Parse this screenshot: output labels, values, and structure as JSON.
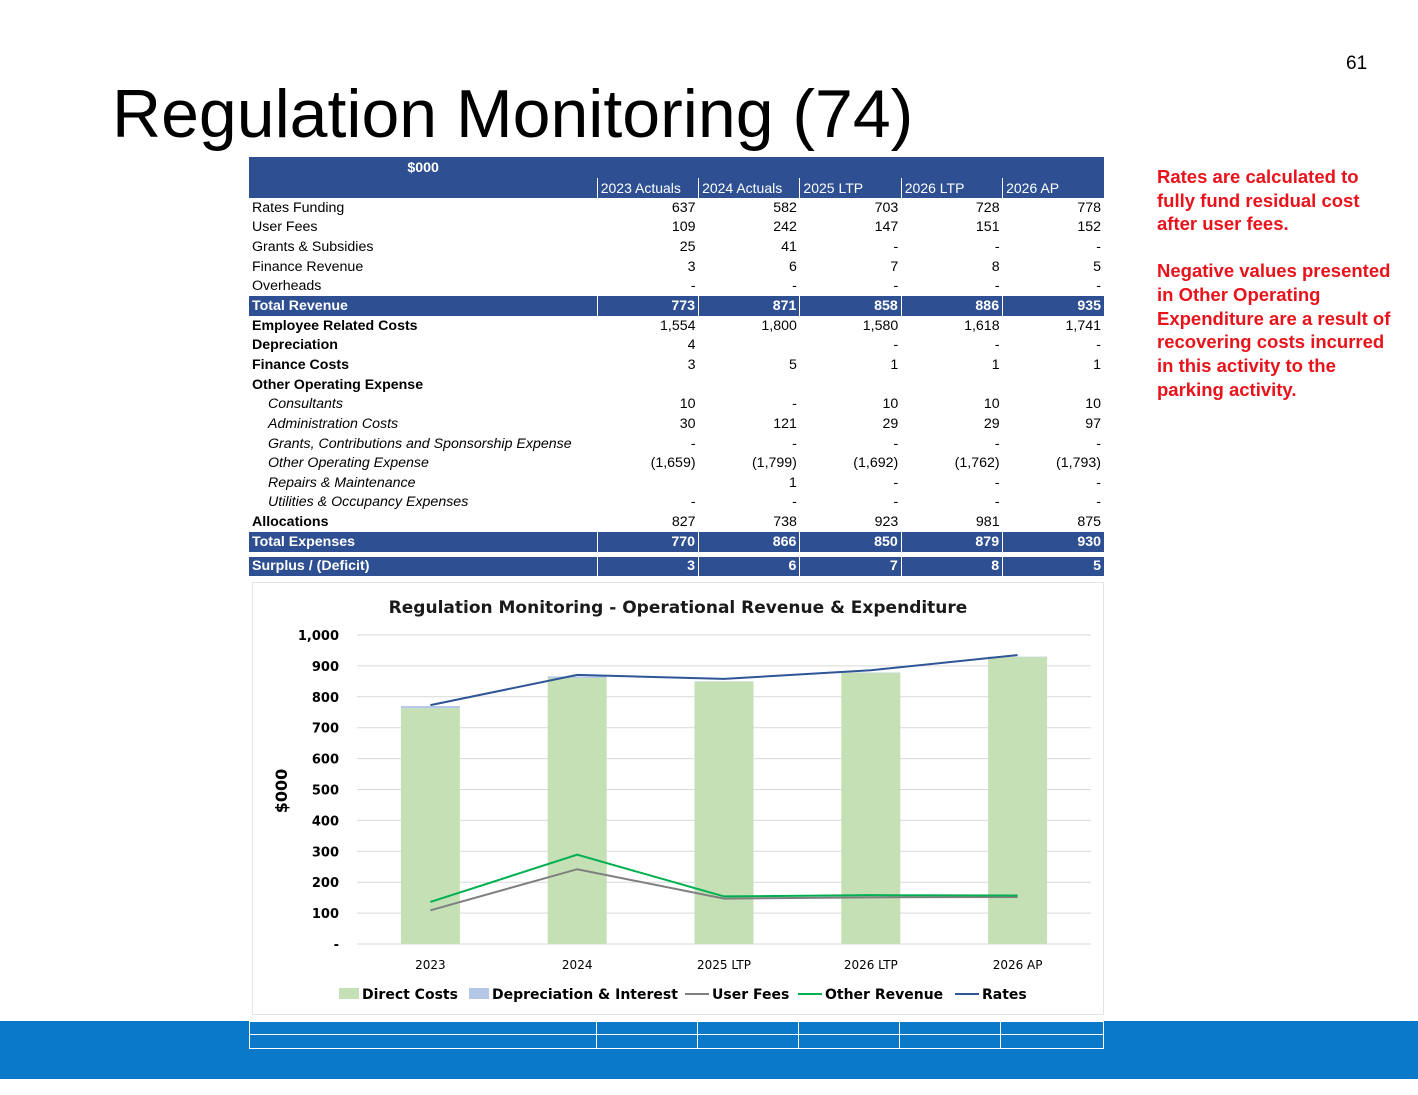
{
  "page_number": "61",
  "title": "Regulation Monitoring (74)",
  "notes": [
    "Rates are calculated to fully fund residual cost after user fees.",
    "Negative values presented in Other Operating Expenditure are a result of recovering costs incurred in this activity to the parking activity."
  ],
  "table": {
    "unit_label": "$000",
    "columns": [
      "2023 Actuals",
      "2024 Actuals",
      "2025 LTP",
      "2026 LTP",
      "2026 AP"
    ],
    "rows": [
      {
        "label": "Rates Funding",
        "values": [
          "637",
          "582",
          "703",
          "728",
          "778"
        ],
        "style": "normal"
      },
      {
        "label": "User Fees",
        "values": [
          "109",
          "242",
          "147",
          "151",
          "152"
        ],
        "style": "normal"
      },
      {
        "label": "Grants & Subsidies",
        "values": [
          "25",
          "41",
          "-",
          "-",
          "-"
        ],
        "style": "normal"
      },
      {
        "label": "Finance Revenue",
        "values": [
          "3",
          "6",
          "7",
          "8",
          "5"
        ],
        "style": "normal"
      },
      {
        "label": "Overheads",
        "values": [
          "-",
          "-",
          "-",
          "-",
          "-"
        ],
        "style": "normal"
      },
      {
        "label": "Total Revenue",
        "values": [
          "773",
          "871",
          "858",
          "886",
          "935"
        ],
        "style": "total"
      },
      {
        "label": "Employee Related Costs",
        "values": [
          "1,554",
          "1,800",
          "1,580",
          "1,618",
          "1,741"
        ],
        "style": "bold"
      },
      {
        "label": "Depreciation",
        "values": [
          "4",
          "",
          "-",
          "-",
          "-"
        ],
        "style": "bold"
      },
      {
        "label": "Finance Costs",
        "values": [
          "3",
          "5",
          "1",
          "1",
          "1"
        ],
        "style": "bold"
      },
      {
        "label": "Other Operating  Expense",
        "values": [
          "",
          "",
          "",
          "",
          ""
        ],
        "style": "bold"
      },
      {
        "label": "Consultants",
        "values": [
          "10",
          "-",
          "10",
          "10",
          "10"
        ],
        "style": "sub"
      },
      {
        "label": "Administration Costs",
        "values": [
          "30",
          "121",
          "29",
          "29",
          "97"
        ],
        "style": "sub"
      },
      {
        "label": "Grants, Contributions and Sponsorship Expense",
        "values": [
          "-",
          "-",
          "-",
          "-",
          "-"
        ],
        "style": "sub"
      },
      {
        "label": "Other Operating Expense",
        "values": [
          "(1,659)",
          "(1,799)",
          "(1,692)",
          "(1,762)",
          "(1,793)"
        ],
        "style": "sub"
      },
      {
        "label": "Repairs & Maintenance",
        "values": [
          "",
          "1",
          "-",
          "-",
          "-"
        ],
        "style": "sub"
      },
      {
        "label": "Utilities & Occupancy Expenses",
        "values": [
          "-",
          "-",
          "-",
          "-",
          "-"
        ],
        "style": "sub"
      },
      {
        "label": "Allocations",
        "values": [
          "827",
          "738",
          "923",
          "981",
          "875"
        ],
        "style": "bold"
      },
      {
        "label": "Total Expenses",
        "values": [
          "770",
          "866",
          "850",
          "879",
          "930"
        ],
        "style": "total"
      },
      {
        "label": "",
        "values": [
          "",
          "",
          "",
          "",
          ""
        ],
        "style": "spacer"
      },
      {
        "label": "Surplus / (Deficit)",
        "values": [
          "3",
          "6",
          "7",
          "8",
          "5"
        ],
        "style": "total"
      }
    ]
  },
  "chart_data": {
    "type": "bar",
    "title": "Regulation Monitoring - Operational Revenue & Expenditure",
    "ylabel": "$000",
    "xlabel": "",
    "categories": [
      "2023",
      "2024",
      "2025 LTP",
      "2026 LTP",
      "2026 AP"
    ],
    "ylim": [
      0,
      1000
    ],
    "yticks": [
      0,
      100,
      200,
      300,
      400,
      500,
      600,
      700,
      800,
      900,
      1000
    ],
    "ytick_labels": [
      "-",
      "100",
      "200",
      "300",
      "400",
      "500",
      "600",
      "700",
      "800",
      "900",
      "1,000"
    ],
    "grid": true,
    "legend_position": "bottom",
    "stacked_bars": [
      {
        "name": "Direct Costs",
        "values": [
          763,
          861,
          849,
          878,
          929
        ],
        "color": "#c5e0b4"
      },
      {
        "name": "Depreciation & Interest",
        "values": [
          7,
          5,
          1,
          1,
          1
        ],
        "color": "#b4c7e7"
      }
    ],
    "lines": [
      {
        "name": "User Fees",
        "values": [
          109,
          242,
          147,
          151,
          152
        ],
        "color": "#7f7f7f"
      },
      {
        "name": "Other Revenue",
        "values": [
          136,
          289,
          154,
          158,
          157
        ],
        "color": "#00b050"
      },
      {
        "name": "Rates",
        "values": [
          773,
          871,
          858,
          886,
          935
        ],
        "color": "#2f5597"
      }
    ]
  },
  "colors": {
    "table_header": "#2e4f91",
    "note_text": "#e8131b",
    "footer_band": "#0a79c9"
  }
}
